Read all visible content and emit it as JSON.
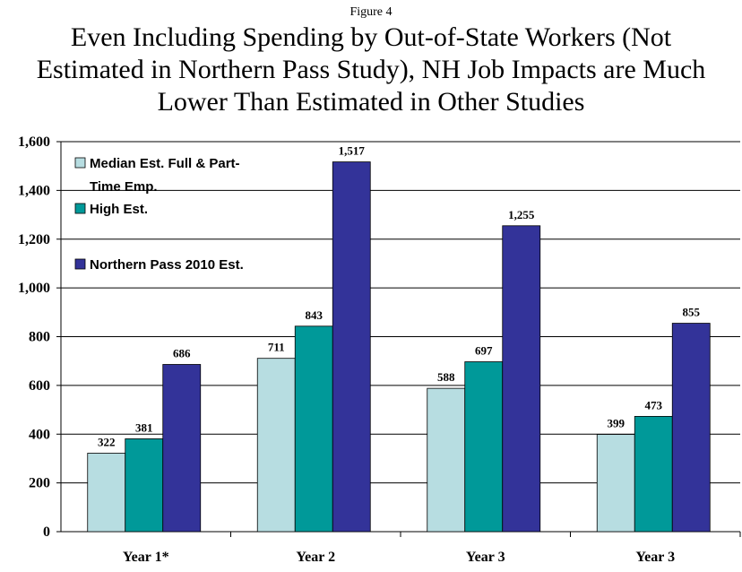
{
  "figure_label": "Figure 4",
  "chart_data": {
    "type": "bar",
    "title_lines": [
      "Even Including Spending by Out-of-State Workers (Not",
      "Estimated in Northern Pass Study), NH Job Impacts are Much",
      "Lower Than Estimated in Other Studies"
    ],
    "categories": [
      "Year 1*",
      "Year 2",
      "Year 3",
      "Year 3"
    ],
    "series": [
      {
        "name": "Median Est. Full & Part-Time Emp.",
        "legend_lines": [
          "Median Est. Full & Part-",
          "Time Emp."
        ],
        "color": "#b7dde1",
        "values": [
          322,
          711,
          588,
          399
        ],
        "labels": [
          "322",
          "711",
          "588",
          "399"
        ]
      },
      {
        "name": "High Est.",
        "legend_lines": [
          "High Est."
        ],
        "color": "#009999",
        "values": [
          381,
          843,
          697,
          473
        ],
        "labels": [
          "381",
          "843",
          "697",
          "473"
        ]
      },
      {
        "name": "Northern Pass 2010 Est.",
        "legend_lines": [
          "Northern Pass 2010 Est."
        ],
        "color": "#333399",
        "values": [
          686,
          1517,
          1255,
          855
        ],
        "labels": [
          "686",
          "1,517",
          "1,255",
          "855"
        ]
      }
    ],
    "yticks": [
      0,
      200,
      400,
      600,
      800,
      1000,
      1200,
      1400,
      1600
    ],
    "ytick_labels": [
      "0",
      "200",
      "400",
      "600",
      "800",
      "1,000",
      "1,200",
      "1,400",
      "1,600"
    ],
    "ylim": [
      0,
      1600
    ],
    "grid": true,
    "legend_position": "top-left"
  }
}
